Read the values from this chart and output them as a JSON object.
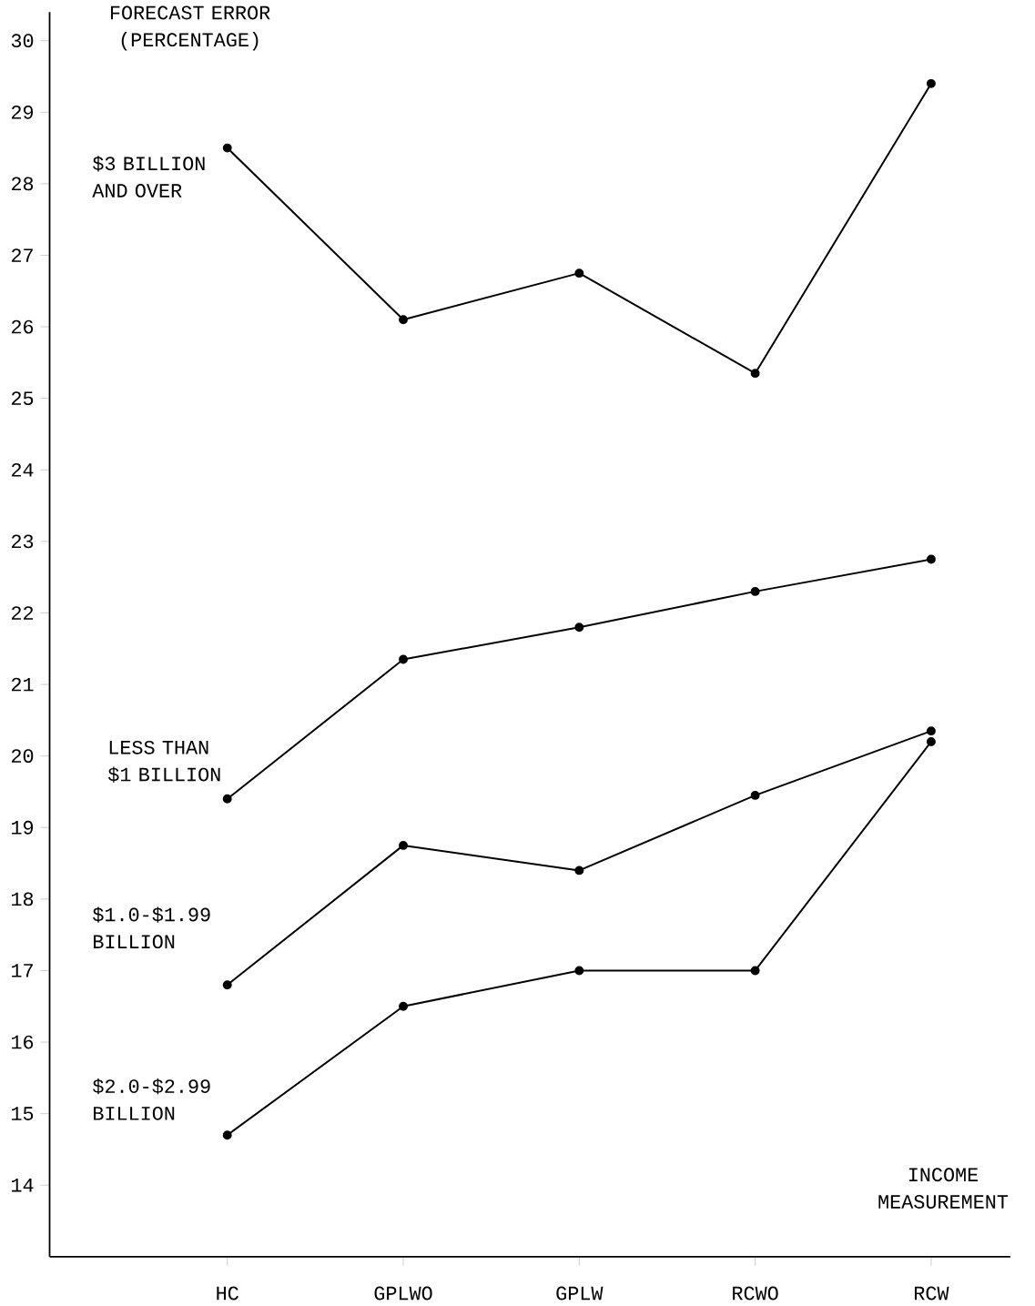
{
  "chart_data": {
    "type": "line",
    "xlabel": "INCOME MEASUREMENT",
    "ylabel": "FORECAST ERROR (PERCENTAGE)",
    "categories": [
      "HC",
      "GPLWO",
      "GPLW",
      "RCWO",
      "RCW"
    ],
    "series": [
      {
        "name": "$3 BILLION AND OVER",
        "color": "#000000",
        "values": [
          28.5,
          26.1,
          26.75,
          25.35,
          29.4
        ]
      },
      {
        "name": "LESS THAN $1 BILLION",
        "color": "#000000",
        "values": [
          19.4,
          21.35,
          21.8,
          22.3,
          22.75
        ]
      },
      {
        "name": "$1.0-$1.99 BILLION",
        "color": "#000000",
        "values": [
          16.8,
          18.75,
          18.4,
          19.45,
          20.35
        ]
      },
      {
        "name": "$2.0-$2.99 BILLION",
        "color": "#000000",
        "values": [
          14.7,
          16.5,
          17.0,
          17.0,
          20.2
        ]
      }
    ],
    "ylim": [
      13,
      30.4
    ],
    "yticks": [
      14,
      15,
      16,
      17,
      18,
      19,
      20,
      21,
      22,
      23,
      24,
      25,
      26,
      27,
      28,
      29,
      30
    ],
    "grid": false,
    "legend": false,
    "marker": "circle",
    "line_style": "solid"
  }
}
